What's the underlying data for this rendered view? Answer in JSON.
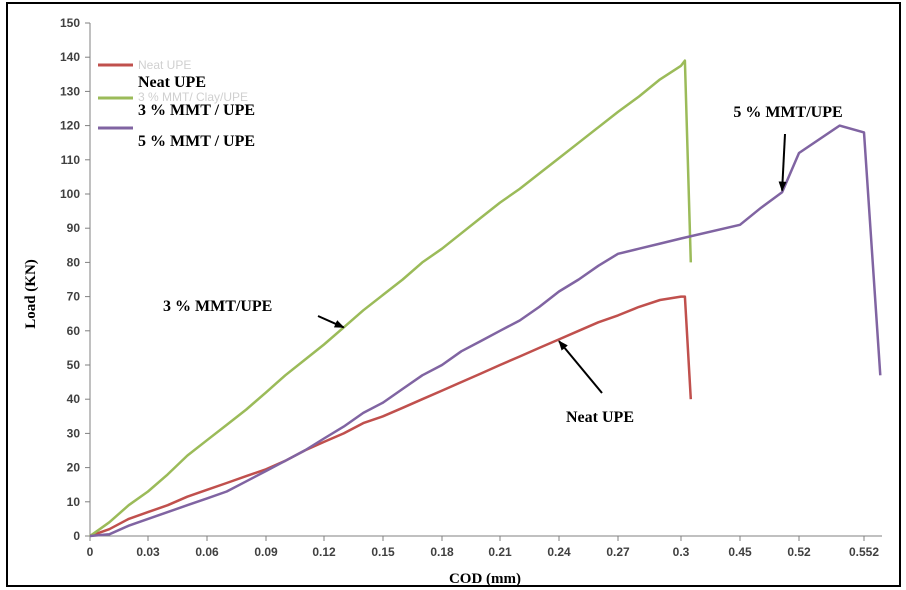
{
  "chart_data": {
    "type": "line",
    "xlabel": "COD (mm)",
    "ylabel": "Load (KN)",
    "ylim": [
      0,
      150
    ],
    "y_ticks": [
      0,
      10,
      20,
      30,
      40,
      50,
      60,
      70,
      80,
      90,
      100,
      110,
      120,
      130,
      140,
      150
    ],
    "x_tick_labels": [
      "0",
      "0.03",
      "0.06",
      "0.09",
      "0.12",
      "0.15",
      "0.18",
      "0.21",
      "0.24",
      "0.27",
      "0.3",
      "0.45",
      "0.52",
      "0.552"
    ],
    "grid": false,
    "legend_position": "top-left",
    "legend_ghost_labels": [
      "Neat UPE",
      "3 % MMT/ Clay/UPE"
    ],
    "series": [
      {
        "name": "Neat UPE",
        "color": "#c0504d",
        "points": [
          [
            0,
            0
          ],
          [
            0.005,
            1
          ],
          [
            0.01,
            2
          ],
          [
            0.02,
            5
          ],
          [
            0.03,
            7
          ],
          [
            0.04,
            9
          ],
          [
            0.05,
            11.5
          ],
          [
            0.06,
            13.5
          ],
          [
            0.07,
            15.5
          ],
          [
            0.08,
            17.5
          ],
          [
            0.09,
            19.5
          ],
          [
            0.1,
            22
          ],
          [
            0.11,
            25
          ],
          [
            0.12,
            27.5
          ],
          [
            0.13,
            30
          ],
          [
            0.14,
            33
          ],
          [
            0.15,
            35
          ],
          [
            0.16,
            37.5
          ],
          [
            0.17,
            40
          ],
          [
            0.18,
            42.5
          ],
          [
            0.19,
            45
          ],
          [
            0.2,
            47.5
          ],
          [
            0.21,
            50
          ],
          [
            0.22,
            52.5
          ],
          [
            0.23,
            55
          ],
          [
            0.24,
            57.5
          ],
          [
            0.25,
            60
          ],
          [
            0.26,
            62.5
          ],
          [
            0.27,
            64.5
          ],
          [
            0.28,
            67
          ],
          [
            0.29,
            69
          ],
          [
            0.3,
            70
          ],
          [
            0.31,
            70
          ],
          [
            0.325,
            40
          ]
        ]
      },
      {
        "name": "3 % MMT / UPE",
        "color": "#9bbb59",
        "points": [
          [
            0,
            0
          ],
          [
            0.005,
            2
          ],
          [
            0.01,
            4
          ],
          [
            0.02,
            9
          ],
          [
            0.03,
            13
          ],
          [
            0.04,
            18
          ],
          [
            0.05,
            23.5
          ],
          [
            0.06,
            28
          ],
          [
            0.07,
            32.5
          ],
          [
            0.08,
            37
          ],
          [
            0.09,
            42
          ],
          [
            0.1,
            47
          ],
          [
            0.11,
            51.5
          ],
          [
            0.12,
            56
          ],
          [
            0.13,
            61
          ],
          [
            0.14,
            66
          ],
          [
            0.15,
            70.5
          ],
          [
            0.16,
            75
          ],
          [
            0.17,
            80
          ],
          [
            0.18,
            84
          ],
          [
            0.19,
            88.5
          ],
          [
            0.2,
            93
          ],
          [
            0.21,
            97.5
          ],
          [
            0.22,
            101.5
          ],
          [
            0.23,
            106
          ],
          [
            0.24,
            110.5
          ],
          [
            0.25,
            115
          ],
          [
            0.26,
            119.5
          ],
          [
            0.27,
            124
          ],
          [
            0.28,
            128.5
          ],
          [
            0.29,
            133.5
          ],
          [
            0.3,
            137.5
          ],
          [
            0.31,
            139
          ],
          [
            0.325,
            80
          ]
        ]
      },
      {
        "name": "5 % MMT / UPE",
        "color": "#8064a2",
        "points": [
          [
            0,
            0
          ],
          [
            0.01,
            0.5
          ],
          [
            0.02,
            3
          ],
          [
            0.03,
            5
          ],
          [
            0.04,
            7
          ],
          [
            0.05,
            9
          ],
          [
            0.06,
            11
          ],
          [
            0.07,
            13
          ],
          [
            0.08,
            16
          ],
          [
            0.09,
            19
          ],
          [
            0.1,
            22
          ],
          [
            0.11,
            25
          ],
          [
            0.12,
            28.5
          ],
          [
            0.13,
            32
          ],
          [
            0.14,
            36
          ],
          [
            0.15,
            39
          ],
          [
            0.16,
            43
          ],
          [
            0.17,
            47
          ],
          [
            0.18,
            50
          ],
          [
            0.19,
            54
          ],
          [
            0.2,
            57
          ],
          [
            0.21,
            60
          ],
          [
            0.22,
            63
          ],
          [
            0.23,
            67
          ],
          [
            0.24,
            71.5
          ],
          [
            0.25,
            75
          ],
          [
            0.26,
            79
          ],
          [
            0.27,
            82.5
          ],
          [
            0.28,
            84
          ],
          [
            0.29,
            85.5
          ],
          [
            0.3,
            87
          ],
          [
            0.45,
            91
          ],
          [
            0.475,
            96
          ],
          [
            0.5,
            100.5
          ],
          [
            0.52,
            112
          ],
          [
            0.54,
            120
          ],
          [
            0.552,
            118
          ],
          [
            0.56,
            47
          ]
        ]
      }
    ],
    "annotations": [
      {
        "text": "3 % MMT/UPE",
        "points_to": [
          0.13,
          61
        ]
      },
      {
        "text": "Neat UPE",
        "points_to": [
          0.24,
          57
        ]
      },
      {
        "text": "5 % MMT/UPE",
        "points_to": [
          0.5,
          101
        ]
      }
    ]
  }
}
